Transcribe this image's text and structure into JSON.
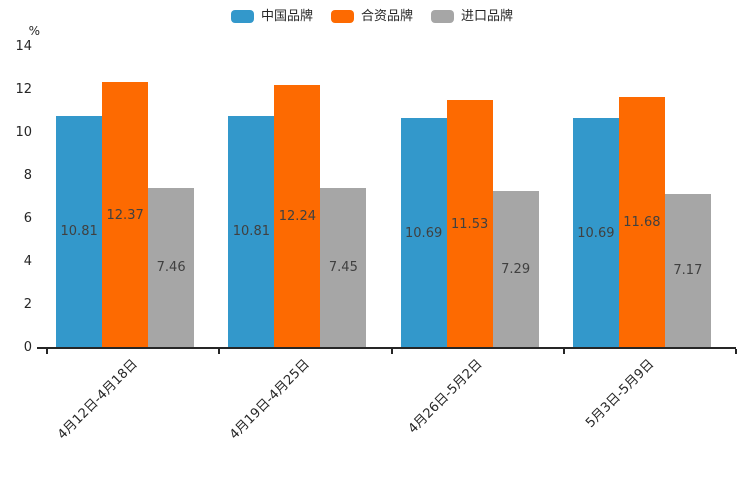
{
  "chart_data": {
    "type": "bar",
    "title": "",
    "unit_label": "%",
    "categories": [
      "4月12日-4月18日",
      "4月19日-4月25日",
      "4月26日-5月2日",
      "5月3日-5月9日"
    ],
    "series": [
      {
        "name": "中国品牌",
        "color": "#3398cb",
        "values": [
          10.81,
          10.81,
          10.69,
          10.69
        ]
      },
      {
        "name": "合资品牌",
        "color": "#fd6a01",
        "values": [
          12.37,
          12.24,
          11.53,
          11.68
        ]
      },
      {
        "name": "进口品牌",
        "color": "#a6a6a6",
        "values": [
          7.46,
          7.45,
          7.29,
          7.17
        ]
      }
    ],
    "y_ticks": [
      0,
      2,
      4,
      6,
      8,
      10,
      12,
      14
    ],
    "ylim": [
      0,
      14
    ],
    "grid": false,
    "legend_position": "top",
    "data_labels_visible": true
  },
  "colors": {
    "background": "#ffffff",
    "axis_line": "#262626",
    "tick_text": "#262626",
    "value_label_text": "#404040"
  }
}
